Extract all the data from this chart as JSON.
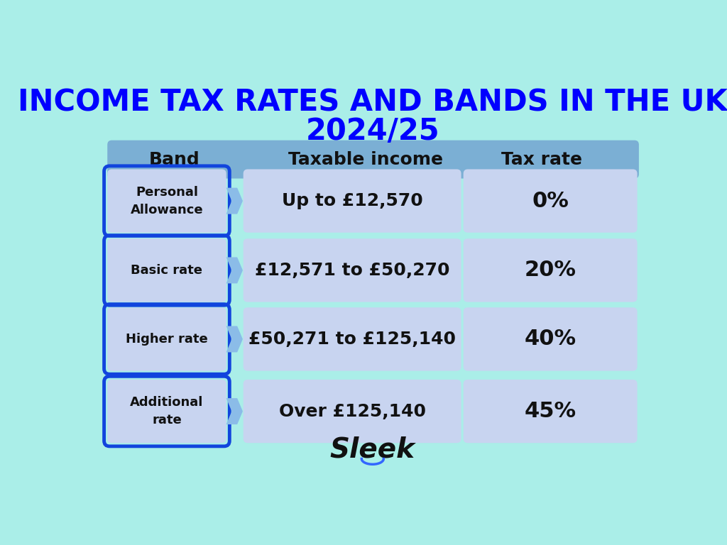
{
  "title_line1": "INCOME TAX RATES AND BANDS IN THE UK",
  "title_line2": "2024/25",
  "title_color": "#0000FF",
  "bg_color": "#AAEEE8",
  "header_bg": "#7BAFD4",
  "cell_bg": "#C8D4F0",
  "band_border_color": "#1144DD",
  "header_labels": [
    "Band",
    "Taxable income",
    "Tax rate"
  ],
  "rows": [
    {
      "band": "Personal\nAllowance",
      "income": "Up to £12,570",
      "rate": "0%"
    },
    {
      "band": "Basic rate",
      "income": "£12,571 to £50,270",
      "rate": "20%"
    },
    {
      "band": "Higher rate",
      "income": "£50,271 to £125,140",
      "rate": "40%"
    },
    {
      "band": "Additional\nrate",
      "income": "Over £125,140",
      "rate": "45%"
    }
  ],
  "sleek_text_color": "#111111",
  "sleek_circle_color": "#3366FF"
}
